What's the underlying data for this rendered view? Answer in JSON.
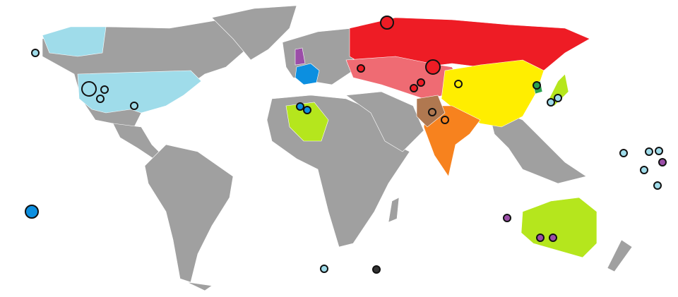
{
  "map": {
    "type": "world-choropleth-with-site-markers",
    "colors": {
      "ocean": "#ffffff",
      "other_land": "#a0a0a0",
      "border": "#ffffff",
      "usa": "#9fdcea",
      "russia": "#ee1c25",
      "kazakhstan_region": "#ef6b73",
      "france": "#0c8fe0",
      "uk": "#9b4ea8",
      "china": "#ffee00",
      "india": "#f7821e",
      "pakistan": "#b07850",
      "lime_states": "#b5e61d",
      "north_korea": "#2aa24e",
      "unattributed": "#333333"
    },
    "regions": [
      "usa",
      "russia",
      "kazakhstan_region",
      "france",
      "uk",
      "china",
      "india",
      "pakistan",
      "algeria",
      "australia",
      "japan",
      "north_korea"
    ]
  }
}
